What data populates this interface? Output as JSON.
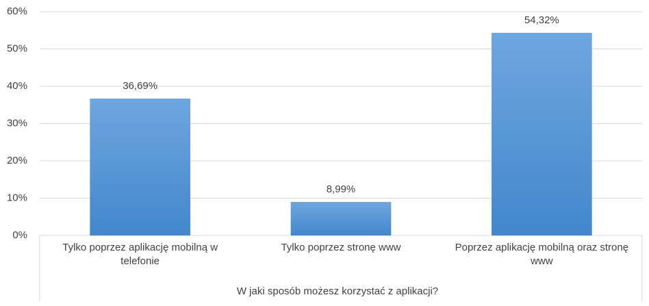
{
  "chart_data": {
    "type": "bar",
    "x_label": "W jaki sposób możesz korzystać z aplikacji?",
    "categories": [
      "Tylko poprzez aplikację mobilną w telefonie",
      "Tylko poprzez stronę www",
      "Poprzez aplikację mobilną oraz stronę www"
    ],
    "values": [
      36.69,
      8.99,
      54.32
    ],
    "value_labels": [
      "36,69%",
      "8,99%",
      "54,32%"
    ],
    "color": "#5b9bd5",
    "ylim": [
      0,
      60
    ],
    "yticks": [
      {
        "value": 0,
        "label": "0%"
      },
      {
        "value": 10,
        "label": "10%"
      },
      {
        "value": 20,
        "label": "20%"
      },
      {
        "value": 30,
        "label": "30%"
      },
      {
        "value": 40,
        "label": "40%"
      },
      {
        "value": 50,
        "label": "50%"
      },
      {
        "value": 60,
        "label": "60%"
      }
    ],
    "grid": true
  }
}
